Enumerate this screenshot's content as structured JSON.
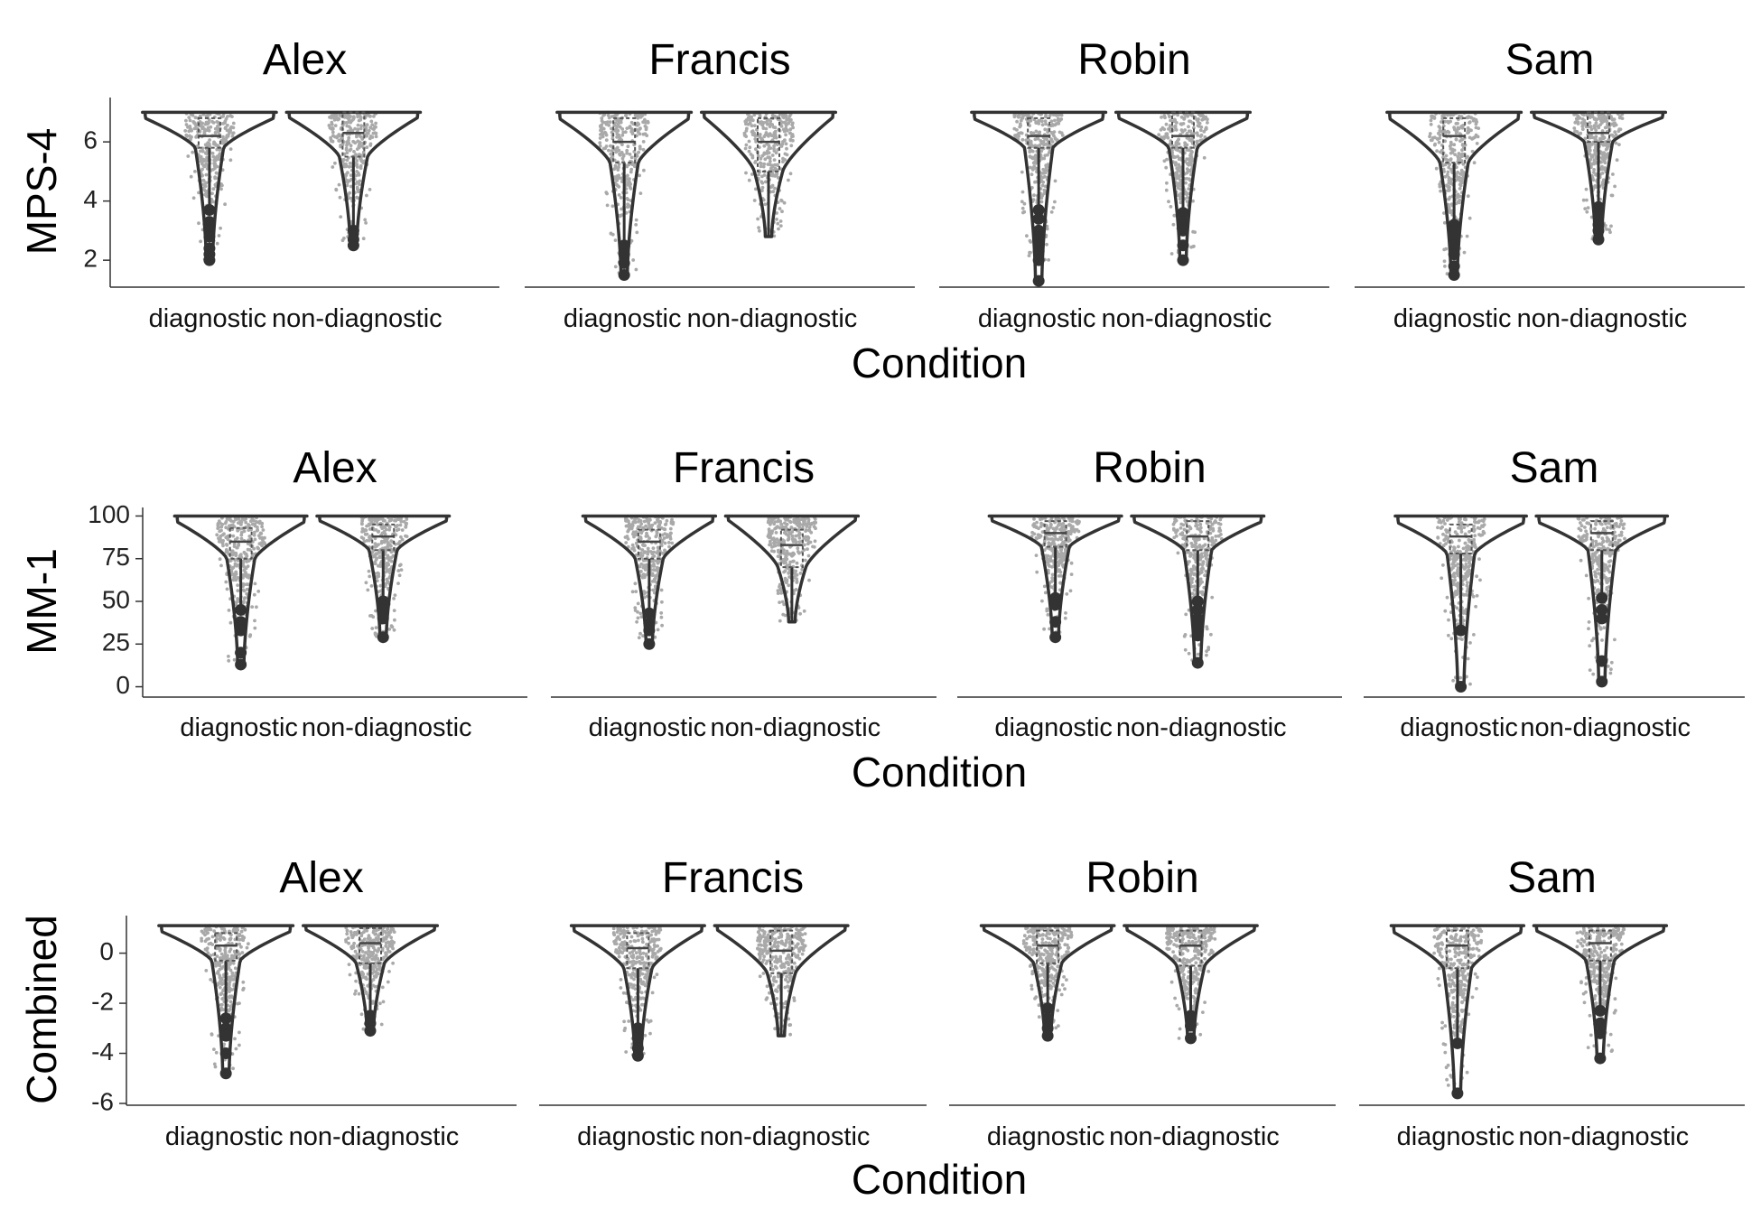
{
  "chart_data": [
    {
      "type": "violin",
      "ylabel": "MPS-4",
      "xlabel": "Condition",
      "ylim": [
        1.15,
        7.5
      ],
      "yticks": [
        "2",
        "4",
        "6"
      ],
      "categories": [
        "diagnostic",
        "non-diagnostic"
      ],
      "facets": [
        {
          "title": "Alex",
          "groups": [
            {
              "category": "diagnostic",
              "max": 7,
              "q3": 6.8,
              "median": 6.2,
              "q1": 5.8,
              "min": 2.0,
              "outliers": [
                3.7,
                3.3,
                3.0,
                2.8,
                2.4,
                2.2,
                2.0
              ]
            },
            {
              "category": "non-diagnostic",
              "max": 7,
              "q3": 7.0,
              "median": 6.3,
              "q1": 5.5,
              "min": 2.5,
              "outliers": [
                3.0,
                2.7,
                2.5
              ]
            }
          ]
        },
        {
          "title": "Francis",
          "groups": [
            {
              "category": "diagnostic",
              "max": 7,
              "q3": 6.8,
              "median": 6.0,
              "q1": 5.3,
              "min": 1.5,
              "outliers": [
                2.5,
                2.2,
                1.9,
                1.5
              ]
            },
            {
              "category": "non-diagnostic",
              "max": 7,
              "q3": 6.8,
              "median": 6.0,
              "q1": 5.0,
              "min": 2.8,
              "outliers": []
            }
          ]
        },
        {
          "title": "Robin",
          "groups": [
            {
              "category": "diagnostic",
              "max": 7,
              "q3": 6.8,
              "median": 6.2,
              "q1": 5.8,
              "min": 1.3,
              "outliers": [
                3.7,
                3.4,
                3.0,
                2.7,
                2.5,
                2.3,
                2.0,
                1.3
              ]
            },
            {
              "category": "non-diagnostic",
              "max": 7,
              "q3": 7.0,
              "median": 6.2,
              "q1": 5.8,
              "min": 2.0,
              "outliers": [
                3.6,
                3.3,
                3.0,
                2.5,
                2.0
              ]
            }
          ]
        },
        {
          "title": "Sam",
          "groups": [
            {
              "category": "diagnostic",
              "max": 7,
              "q3": 6.8,
              "median": 6.2,
              "q1": 5.3,
              "min": 1.5,
              "outliers": [
                3.2,
                3.0,
                2.8,
                2.5,
                2.2,
                1.8,
                1.5
              ]
            },
            {
              "category": "non-diagnostic",
              "max": 7,
              "q3": 7.0,
              "median": 6.3,
              "q1": 6.0,
              "min": 2.7,
              "outliers": [
                3.8,
                3.5,
                3.2,
                3.0,
                2.7
              ]
            }
          ]
        }
      ]
    },
    {
      "type": "violin",
      "ylabel": "MM-1",
      "xlabel": "Condition",
      "ylim": [
        -5,
        105
      ],
      "yticks": [
        "0",
        "25",
        "50",
        "75",
        "100"
      ],
      "categories": [
        "diagnostic",
        "non-diagnostic"
      ],
      "facets": [
        {
          "title": "Alex",
          "groups": [
            {
              "category": "diagnostic",
              "max": 100,
              "q3": 93,
              "median": 85,
              "q1": 75,
              "min": 13,
              "outliers": [
                45,
                38,
                33,
                20,
                13
              ]
            },
            {
              "category": "non-diagnostic",
              "max": 100,
              "q3": 95,
              "median": 88,
              "q1": 80,
              "min": 29,
              "outliers": [
                50,
                45,
                40,
                29
              ]
            }
          ]
        },
        {
          "title": "Francis",
          "groups": [
            {
              "category": "diagnostic",
              "max": 100,
              "q3": 92,
              "median": 85,
              "q1": 75,
              "min": 25,
              "outliers": [
                43,
                37,
                33,
                25
              ]
            },
            {
              "category": "non-diagnostic",
              "max": 100,
              "q3": 92,
              "median": 83,
              "q1": 70,
              "min": 38,
              "outliers": []
            }
          ]
        },
        {
          "title": "Robin",
          "groups": [
            {
              "category": "diagnostic",
              "max": 100,
              "q3": 97,
              "median": 90,
              "q1": 82,
              "min": 29,
              "outliers": [
                52,
                48,
                38,
                29
              ]
            },
            {
              "category": "non-diagnostic",
              "max": 100,
              "q3": 97,
              "median": 88,
              "q1": 80,
              "min": 14,
              "outliers": [
                50,
                45,
                40,
                35,
                30,
                14
              ]
            }
          ]
        },
        {
          "title": "Sam",
          "groups": [
            {
              "category": "diagnostic",
              "max": 100,
              "q3": 95,
              "median": 88,
              "q1": 78,
              "min": 0,
              "outliers": [
                33,
                0
              ]
            },
            {
              "category": "non-diagnostic",
              "max": 100,
              "q3": 97,
              "median": 90,
              "q1": 80,
              "min": 3,
              "outliers": [
                52,
                45,
                40,
                15,
                3
              ]
            }
          ]
        }
      ]
    },
    {
      "type": "violin",
      "ylabel": "Combined",
      "xlabel": "Condition",
      "ylim": [
        -6,
        1.5
      ],
      "yticks": [
        "-6",
        "-4",
        "-2",
        "0"
      ],
      "categories": [
        "diagnostic",
        "non-diagnostic"
      ],
      "facets": [
        {
          "title": "Alex",
          "groups": [
            {
              "category": "diagnostic",
              "max": 1.1,
              "q3": 0.8,
              "median": 0.3,
              "q1": -0.3,
              "min": -4.8,
              "outliers": [
                -2.6,
                -3.0,
                -3.3,
                -4.0,
                -4.8
              ]
            },
            {
              "category": "non-diagnostic",
              "max": 1.1,
              "q3": 1.0,
              "median": 0.4,
              "q1": -0.4,
              "min": -3.1,
              "outliers": [
                -2.5,
                -2.8,
                -3.1
              ]
            }
          ]
        },
        {
          "title": "Francis",
          "groups": [
            {
              "category": "diagnostic",
              "max": 1.1,
              "q3": 0.8,
              "median": 0.2,
              "q1": -0.6,
              "min": -4.1,
              "outliers": [
                -3.0,
                -3.4,
                -3.8,
                -4.1
              ]
            },
            {
              "category": "non-diagnostic",
              "max": 1.1,
              "q3": 0.9,
              "median": 0.1,
              "q1": -0.8,
              "min": -3.3,
              "outliers": []
            }
          ]
        },
        {
          "title": "Robin",
          "groups": [
            {
              "category": "diagnostic",
              "max": 1.1,
              "q3": 0.9,
              "median": 0.3,
              "q1": -0.4,
              "min": -3.3,
              "outliers": [
                -2.2,
                -2.6,
                -3.0,
                -3.3
              ]
            },
            {
              "category": "non-diagnostic",
              "max": 1.1,
              "q3": 0.9,
              "median": 0.3,
              "q1": -0.5,
              "min": -3.4,
              "outliers": [
                -2.5,
                -2.9,
                -3.4
              ]
            }
          ]
        },
        {
          "title": "Sam",
          "groups": [
            {
              "category": "diagnostic",
              "max": 1.1,
              "q3": 0.9,
              "median": 0.3,
              "q1": -0.6,
              "min": -5.6,
              "outliers": [
                -3.6,
                -5.6
              ]
            },
            {
              "category": "non-diagnostic",
              "max": 1.1,
              "q3": 0.9,
              "median": 0.4,
              "q1": -0.3,
              "min": -4.2,
              "outliers": [
                -2.3,
                -2.8,
                -3.2,
                -4.2
              ]
            }
          ]
        }
      ]
    }
  ]
}
